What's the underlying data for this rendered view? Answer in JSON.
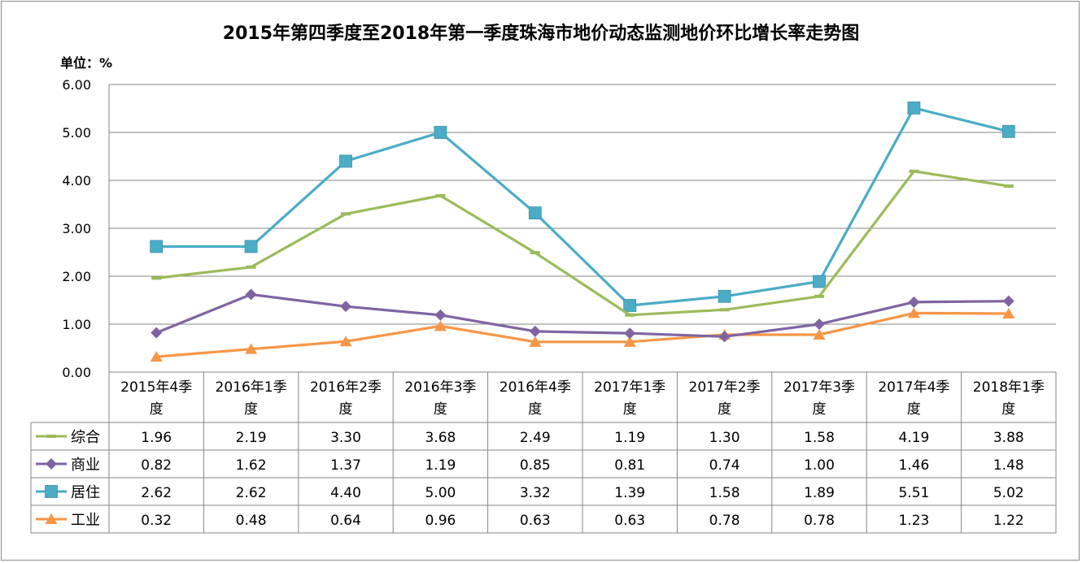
{
  "chart_data": {
    "type": "line",
    "title": "2015年第四季度至2018年第一季度珠海市地价动态监测地价环比增长率走势图",
    "unit_label": "单位：%",
    "ylim": [
      0,
      6
    ],
    "yticks": [
      "0.00",
      "1.00",
      "2.00",
      "3.00",
      "4.00",
      "5.00",
      "6.00"
    ],
    "grid": true,
    "legend": "data-table",
    "categories": [
      [
        "2015年4季",
        "度"
      ],
      [
        "2016年1季",
        "度"
      ],
      [
        "2016年2季",
        "度"
      ],
      [
        "2016年3季",
        "度"
      ],
      [
        "2016年4季",
        "度"
      ],
      [
        "2017年1季",
        "度"
      ],
      [
        "2017年2季",
        "度"
      ],
      [
        "2017年3季",
        "度"
      ],
      [
        "2017年4季",
        "度"
      ],
      [
        "2018年1季",
        "度"
      ]
    ],
    "series": [
      {
        "name": "综合",
        "color": "#9bbb59",
        "marker": "dash",
        "values": [
          1.96,
          2.19,
          3.3,
          3.68,
          2.49,
          1.19,
          1.3,
          1.58,
          4.19,
          3.88
        ],
        "labels": [
          "1.96",
          "2.19",
          "3.30",
          "3.68",
          "2.49",
          "1.19",
          "1.30",
          "1.58",
          "4.19",
          "3.88"
        ]
      },
      {
        "name": "商业",
        "color": "#8064a2",
        "marker": "diamond",
        "values": [
          0.82,
          1.62,
          1.37,
          1.19,
          0.85,
          0.81,
          0.74,
          1.0,
          1.46,
          1.48
        ],
        "labels": [
          "0.82",
          "1.62",
          "1.37",
          "1.19",
          "0.85",
          "0.81",
          "0.74",
          "1.00",
          "1.46",
          "1.48"
        ]
      },
      {
        "name": "居住",
        "color": "#4bacc6",
        "marker": "square",
        "values": [
          2.62,
          2.62,
          4.4,
          5.0,
          3.32,
          1.39,
          1.58,
          1.89,
          5.51,
          5.02
        ],
        "labels": [
          "2.62",
          "2.62",
          "4.40",
          "5.00",
          "3.32",
          "1.39",
          "1.58",
          "1.89",
          "5.51",
          "5.02"
        ]
      },
      {
        "name": "工业",
        "color": "#f79646",
        "marker": "triangle",
        "values": [
          0.32,
          0.48,
          0.64,
          0.96,
          0.63,
          0.63,
          0.78,
          0.78,
          1.23,
          1.22
        ],
        "labels": [
          "0.32",
          "0.48",
          "0.64",
          "0.96",
          "0.63",
          "0.63",
          "0.78",
          "0.78",
          "1.23",
          "1.22"
        ]
      }
    ]
  }
}
